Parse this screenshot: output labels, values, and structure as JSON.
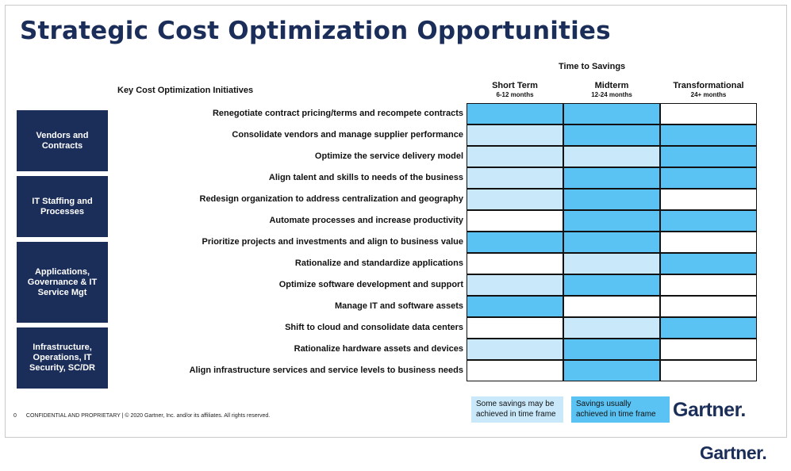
{
  "title": "Strategic Cost Optimization Opportunities",
  "time_to_savings": "Time to Savings",
  "initiatives_header": "Key Cost Optimization Initiatives",
  "columns": [
    {
      "heading": "Short Term",
      "sub": "6-12 months"
    },
    {
      "heading": "Midterm",
      "sub": "12-24 months"
    },
    {
      "heading": "Transformational",
      "sub": "24+ months"
    }
  ],
  "categories": [
    {
      "label": "Vendors and Contracts",
      "rows": 3
    },
    {
      "label": "IT Staffing and Processes",
      "rows": 3
    },
    {
      "label": "Applications, Governance & IT Service Mgt",
      "rows": 4
    },
    {
      "label": "Infrastructure, Operations, IT Security, SC/DR",
      "rows": 3
    }
  ],
  "initiatives": [
    {
      "label": "Renegotiate contract pricing/terms and recompete contracts",
      "levels": [
        "usually",
        "usually",
        "none"
      ]
    },
    {
      "label": "Consolidate vendors and manage supplier performance",
      "levels": [
        "some",
        "usually",
        "usually"
      ]
    },
    {
      "label": "Optimize the service delivery model",
      "levels": [
        "some",
        "some",
        "usually"
      ]
    },
    {
      "label": "Align talent and skills to needs of the business",
      "levels": [
        "some",
        "usually",
        "usually"
      ]
    },
    {
      "label": "Redesign organization to address centralization and geography",
      "levels": [
        "some",
        "usually",
        "none"
      ]
    },
    {
      "label": "Automate processes and increase productivity",
      "levels": [
        "none",
        "usually",
        "usually"
      ]
    },
    {
      "label": "Prioritize projects and investments and align to business value",
      "levels": [
        "usually",
        "usually",
        "none"
      ]
    },
    {
      "label": "Rationalize and standardize applications",
      "levels": [
        "none",
        "some",
        "usually"
      ]
    },
    {
      "label": "Optimize software development and support",
      "levels": [
        "some",
        "usually",
        "none"
      ]
    },
    {
      "label": "Manage IT and software assets",
      "levels": [
        "usually",
        "none",
        "none"
      ]
    },
    {
      "label": "Shift to cloud and consolidate data centers",
      "levels": [
        "none",
        "some",
        "usually"
      ]
    },
    {
      "label": "Rationalize hardware assets and devices",
      "levels": [
        "some",
        "usually",
        "none"
      ]
    },
    {
      "label": "Align infrastructure services and service levels to business needs",
      "levels": [
        "none",
        "usually",
        "none"
      ]
    }
  ],
  "legend": {
    "some": "Some savings may be achieved in time frame",
    "usually": "Savings usually achieved in time frame"
  },
  "colors": {
    "navy": "#1b2e5a",
    "usually": "#5bc3f3",
    "some": "#c9e9fb",
    "none": "#ffffff"
  },
  "footer": {
    "page_number": "0",
    "text": "CONFIDENTIAL AND PROPRIETARY | © 2020 Gartner, Inc. and/or its affiliates. All rights reserved."
  },
  "brand": {
    "logo_text": "Gartner.",
    "outer_logo_text": "Gartner."
  }
}
